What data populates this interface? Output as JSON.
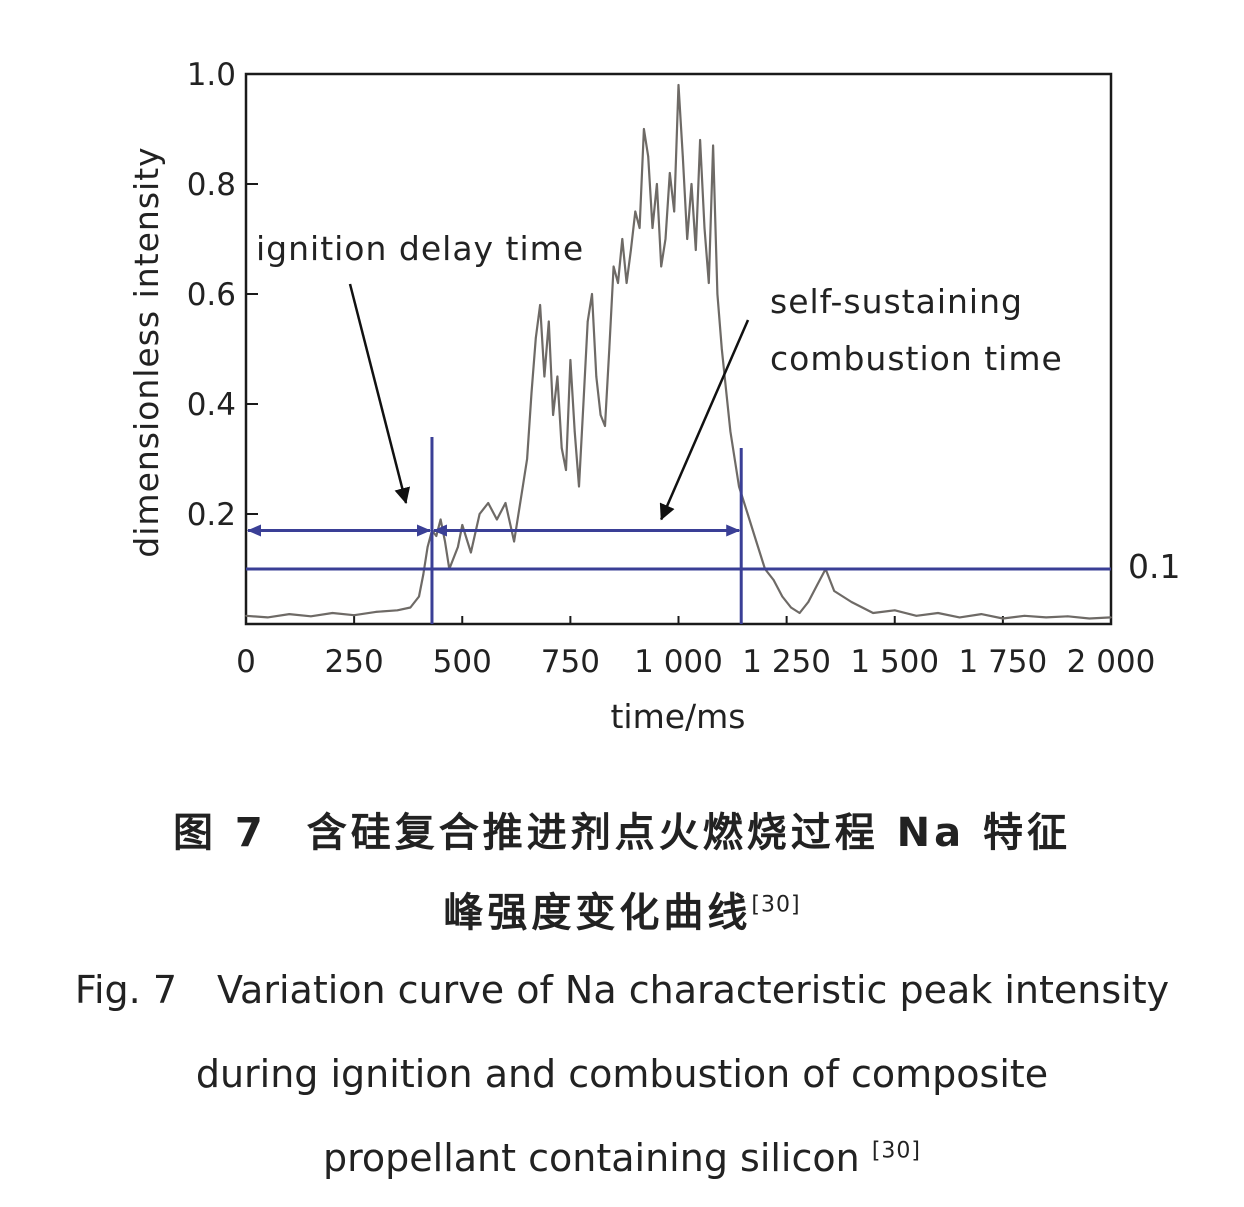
{
  "chart_data": {
    "type": "line",
    "xlabel": "time/ms",
    "ylabel": "dimensionless intensity",
    "xlim": [
      0,
      2000
    ],
    "ylim": [
      0,
      1.0
    ],
    "x_ticks": [
      {
        "value": 0,
        "label": "0"
      },
      {
        "value": 250,
        "label": "250"
      },
      {
        "value": 500,
        "label": "500"
      },
      {
        "value": 750,
        "label": "750"
      },
      {
        "value": 1000,
        "label": "1 000"
      },
      {
        "value": 1250,
        "label": "1 250"
      },
      {
        "value": 1500,
        "label": "1 500"
      },
      {
        "value": 1750,
        "label": "1 750"
      },
      {
        "value": 2000,
        "label": "2 000"
      }
    ],
    "y_ticks": [
      {
        "value": 0.2,
        "label": "0.2"
      },
      {
        "value": 0.4,
        "label": "0.4"
      },
      {
        "value": 0.6,
        "label": "0.6"
      },
      {
        "value": 0.8,
        "label": "0.8"
      },
      {
        "value": 1.0,
        "label": "1.0"
      }
    ],
    "grid": false,
    "series": [
      {
        "x": [
          0,
          50,
          100,
          150,
          200,
          250,
          300,
          350,
          380,
          400,
          410,
          420,
          430,
          440,
          450,
          460,
          470,
          480,
          490,
          500,
          520,
          540,
          560,
          580,
          600,
          620,
          640,
          650,
          660,
          670,
          680,
          690,
          700,
          710,
          720,
          730,
          740,
          750,
          760,
          770,
          780,
          790,
          800,
          810,
          820,
          830,
          840,
          850,
          860,
          870,
          880,
          890,
          900,
          910,
          920,
          930,
          940,
          950,
          960,
          970,
          980,
          990,
          1000,
          1010,
          1020,
          1030,
          1040,
          1050,
          1060,
          1070,
          1080,
          1090,
          1100,
          1120,
          1140,
          1160,
          1180,
          1200,
          1220,
          1240,
          1260,
          1280,
          1300,
          1320,
          1340,
          1360,
          1400,
          1450,
          1500,
          1550,
          1600,
          1650,
          1700,
          1750,
          1800,
          1850,
          1900,
          1950,
          2000
        ],
        "y": [
          0.015,
          0.012,
          0.018,
          0.014,
          0.02,
          0.016,
          0.022,
          0.025,
          0.03,
          0.05,
          0.09,
          0.14,
          0.17,
          0.16,
          0.19,
          0.15,
          0.1,
          0.12,
          0.14,
          0.18,
          0.13,
          0.2,
          0.22,
          0.19,
          0.22,
          0.15,
          0.25,
          0.3,
          0.42,
          0.52,
          0.58,
          0.45,
          0.55,
          0.38,
          0.45,
          0.32,
          0.28,
          0.48,
          0.35,
          0.25,
          0.4,
          0.55,
          0.6,
          0.45,
          0.38,
          0.36,
          0.5,
          0.65,
          0.62,
          0.7,
          0.62,
          0.68,
          0.75,
          0.72,
          0.9,
          0.85,
          0.72,
          0.8,
          0.65,
          0.7,
          0.82,
          0.75,
          0.98,
          0.85,
          0.7,
          0.8,
          0.68,
          0.88,
          0.72,
          0.62,
          0.87,
          0.6,
          0.5,
          0.35,
          0.25,
          0.2,
          0.15,
          0.1,
          0.08,
          0.05,
          0.03,
          0.02,
          0.04,
          0.07,
          0.1,
          0.06,
          0.04,
          0.02,
          0.025,
          0.015,
          0.02,
          0.012,
          0.018,
          0.01,
          0.015,
          0.012,
          0.014,
          0.01,
          0.012
        ]
      }
    ],
    "threshold_value": 0.1,
    "threshold_label": "0.1",
    "markers": [
      {
        "x": 430,
        "y_top": 0.34
      },
      {
        "x": 1145,
        "y_top": 0.32
      }
    ],
    "intervals": [
      {
        "x_start": 0,
        "x_end": 430,
        "y": 0.17
      },
      {
        "x_start": 430,
        "x_end": 1145,
        "y": 0.17
      }
    ],
    "annotations": [
      {
        "text": "ignition delay time",
        "points_to": {
          "x": 370,
          "y": 0.22
        }
      },
      {
        "text": "self-sustaining",
        "points_to": {
          "x": 960,
          "y": 0.19
        }
      },
      {
        "text": "combustion time"
      }
    ]
  },
  "caption": {
    "cn_fig": "图 7",
    "cn_line1": "含硅复合推进剂点火燃烧过程 Na 特征",
    "cn_line2": "峰强度变化曲线",
    "ref": "[30]",
    "en_fig": "Fig. 7",
    "en_line1": "Variation curve of Na characteristic peak intensity",
    "en_line2": "during ignition and combustion of composite",
    "en_line3": "propellant containing silicon",
    "en_ref": "[30]"
  },
  "colors": {
    "data_line": "#6e6a66",
    "guide_lines": "#3a3f96",
    "axis": "#1a1a1a",
    "annotation_arrow": "#111111"
  }
}
